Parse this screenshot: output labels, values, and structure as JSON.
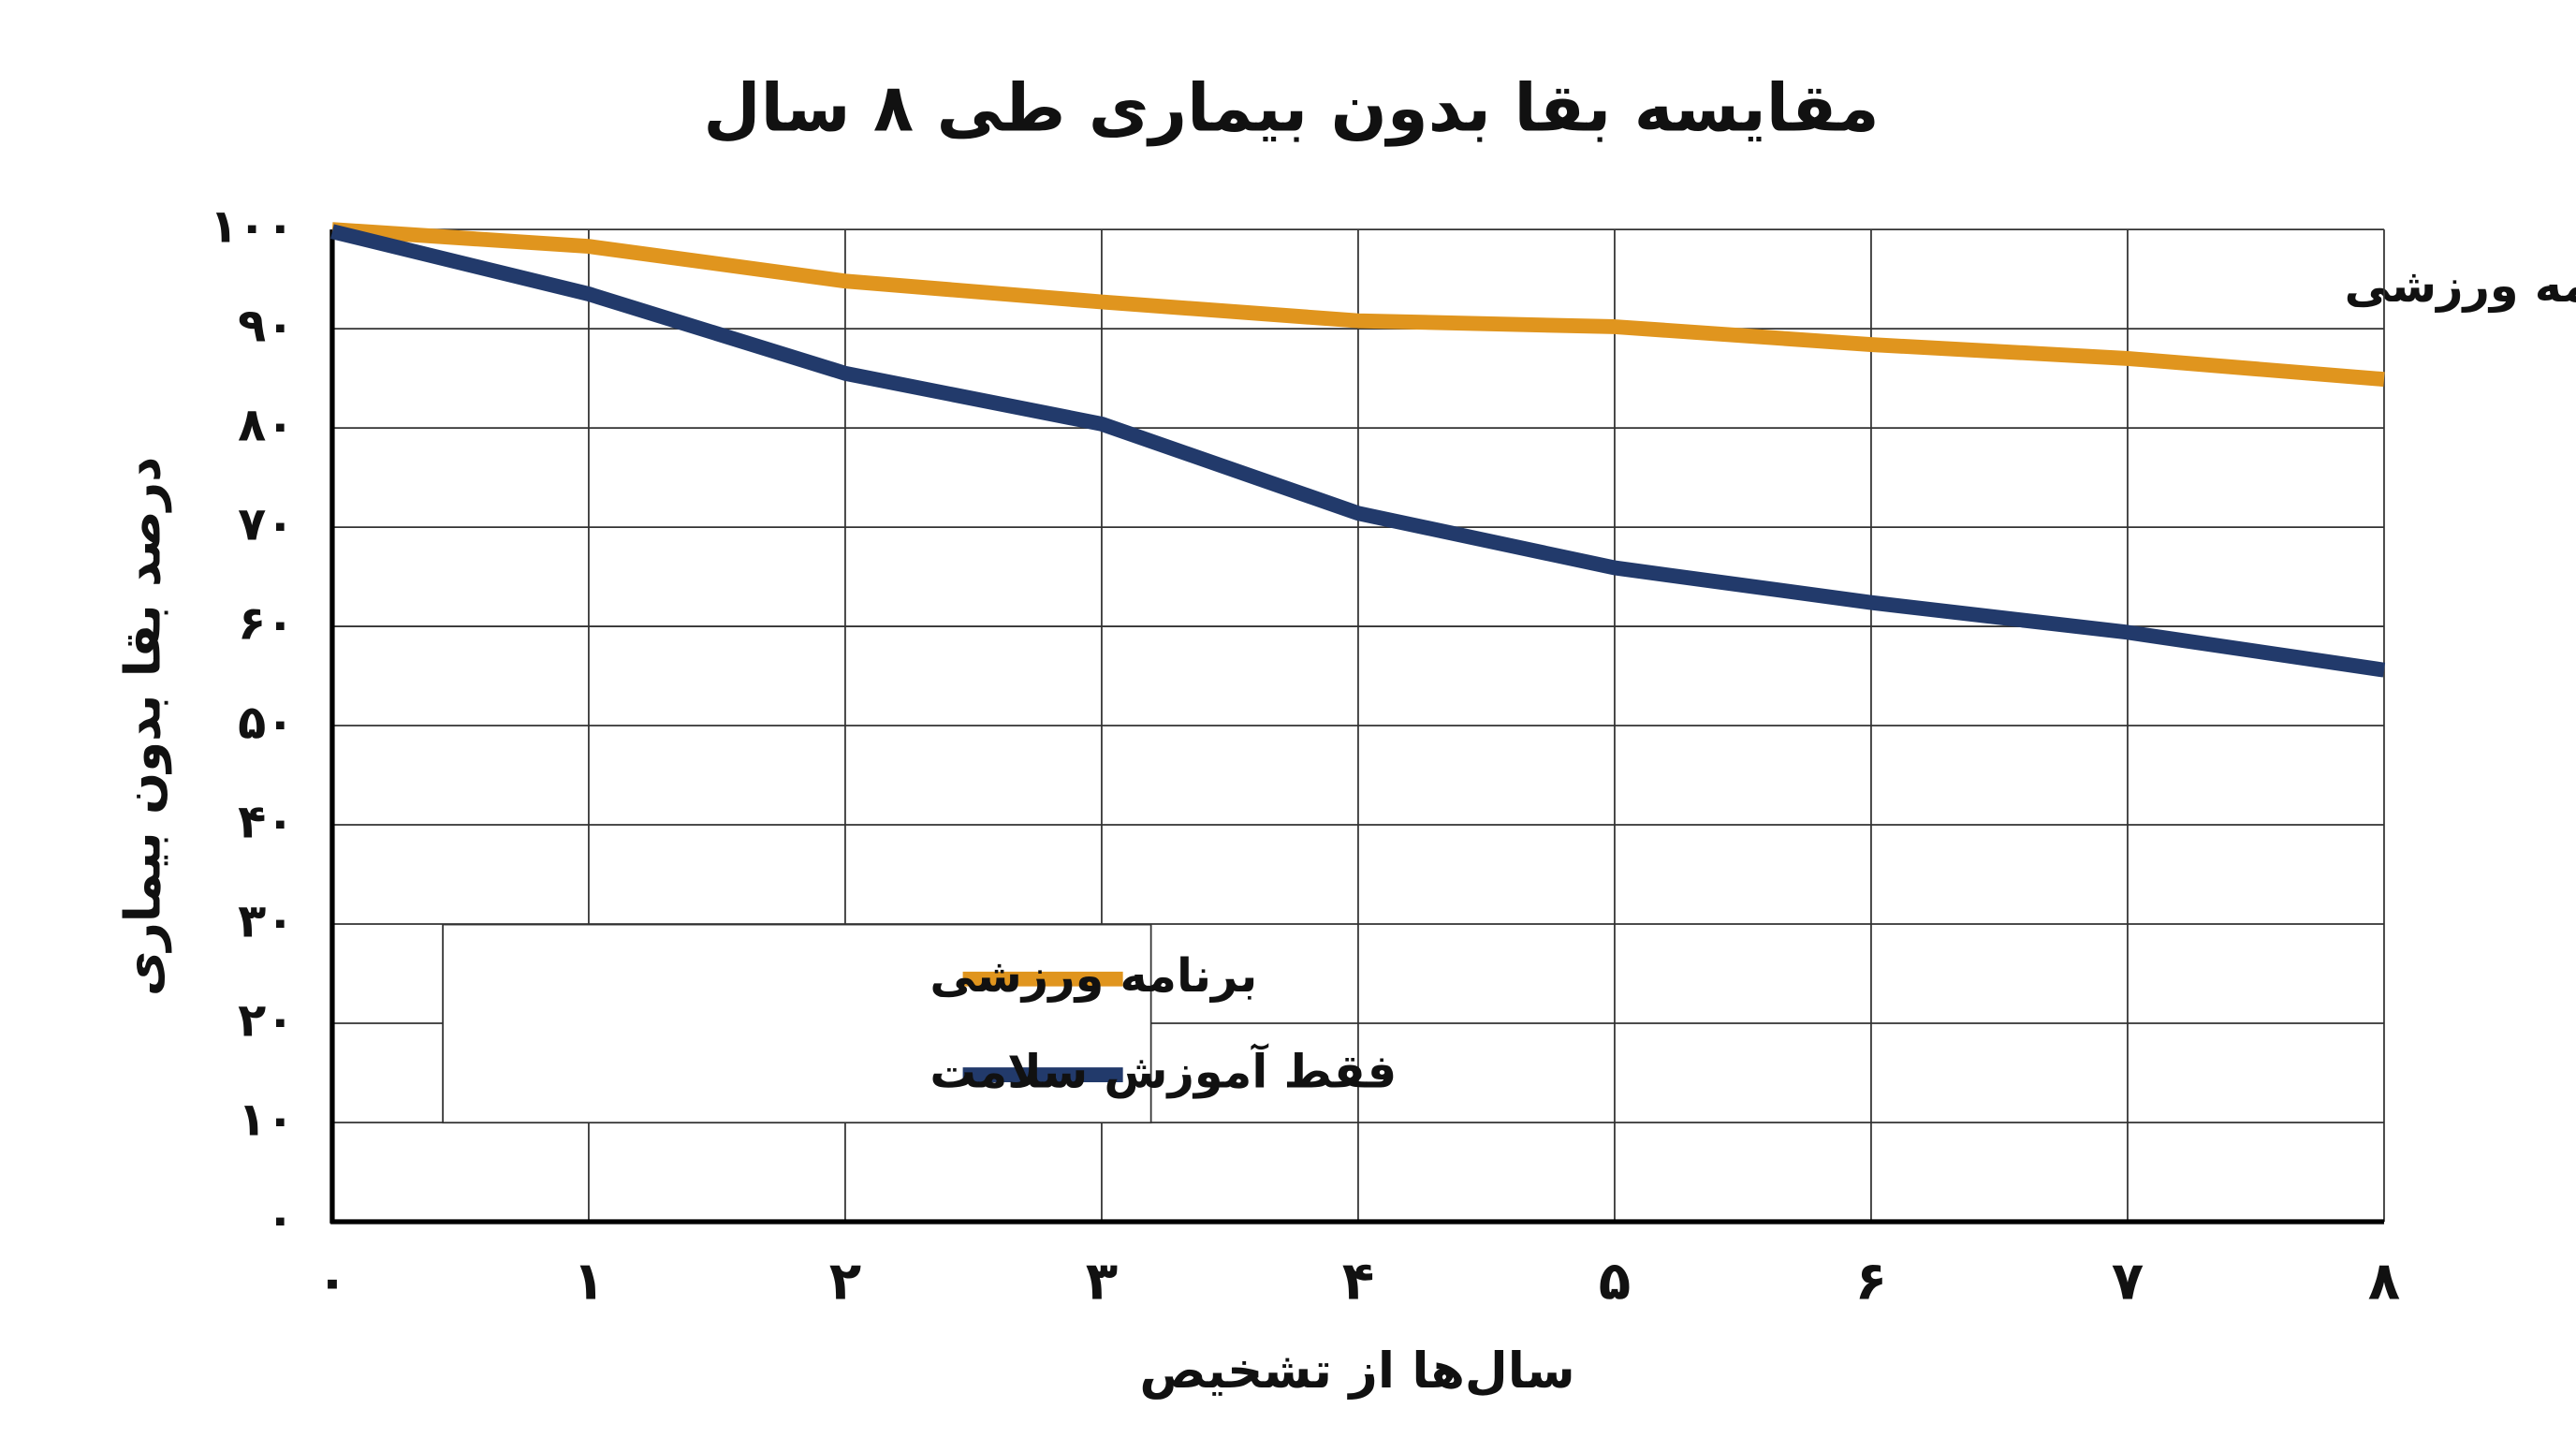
{
  "chart_data": {
    "type": "line",
    "title": "مقایسه بقا بدون بیماری طی ۸ سال",
    "xlabel": "سال‌ها از تشخیص",
    "ylabel": "درصد بقا بدون بیماری",
    "annotation": "برنامه ورزشی",
    "x": [
      0,
      1,
      2,
      3,
      4,
      5,
      6,
      7,
      8
    ],
    "series": [
      {
        "name": "برنامه ورزشی",
        "color": "#e0951e",
        "values": [
          100,
          98.3,
          94.8,
          92.7,
          90.8,
          90.2,
          88.4,
          87,
          84.9
        ]
      },
      {
        "name": "فقط آموزش سلامت",
        "color": "#223a6b",
        "values": [
          99.8,
          93.5,
          85.5,
          80.4,
          71.4,
          65.9,
          62.4,
          59.4,
          55.6
        ]
      }
    ],
    "xlim": [
      0,
      8
    ],
    "xticks": [
      {
        "value": 0,
        "label": "۰"
      },
      {
        "value": 1,
        "label": "۱"
      },
      {
        "value": 2,
        "label": "۲"
      },
      {
        "value": 3,
        "label": "۳"
      },
      {
        "value": 4,
        "label": "۴"
      },
      {
        "value": 5,
        "label": "۵"
      },
      {
        "value": 6,
        "label": "۶"
      },
      {
        "value": 7,
        "label": "۷"
      },
      {
        "value": 8,
        "label": "۸"
      }
    ],
    "ylim": [
      0,
      100
    ],
    "yticks": [
      {
        "value": 0,
        "label": "۰"
      },
      {
        "value": 10,
        "label": "۱۰"
      },
      {
        "value": 20,
        "label": "۲۰"
      },
      {
        "value": 30,
        "label": "۳۰"
      },
      {
        "value": 40,
        "label": "۴۰"
      },
      {
        "value": 50,
        "label": "۵۰"
      },
      {
        "value": 60,
        "label": "۶۰"
      },
      {
        "value": 70,
        "label": "۷۰"
      },
      {
        "value": 80,
        "label": "۸۰"
      },
      {
        "value": 90,
        "label": "۹۰"
      },
      {
        "value": 100,
        "label": "۱۰۰"
      }
    ],
    "grid": true,
    "legend": "lower left"
  }
}
